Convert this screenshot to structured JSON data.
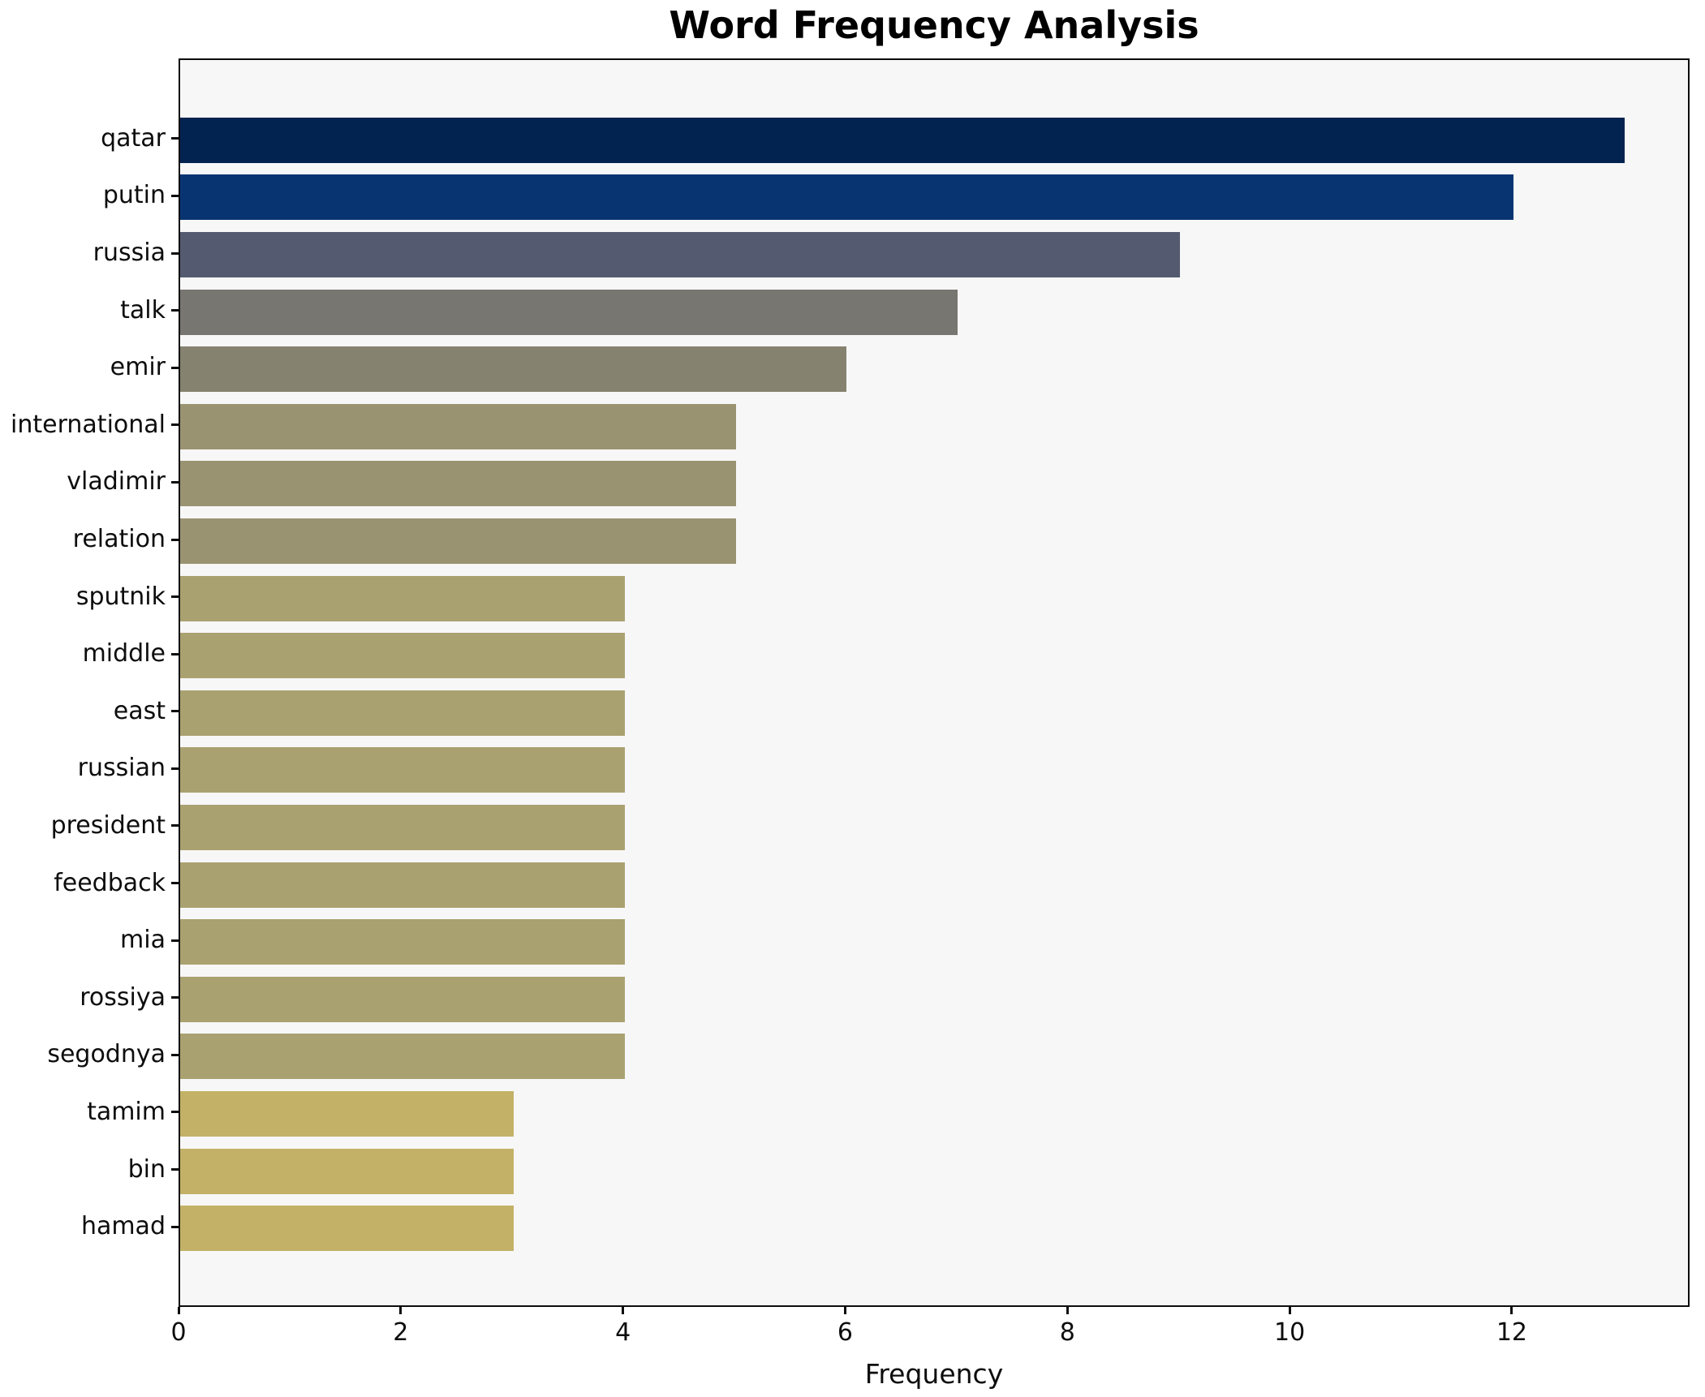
{
  "chart_data": {
    "type": "bar",
    "orientation": "horizontal",
    "title": "Word Frequency Analysis",
    "xlabel": "Frequency",
    "ylabel": "",
    "categories": [
      "qatar",
      "putin",
      "russia",
      "talk",
      "emir",
      "international",
      "vladimir",
      "relation",
      "sputnik",
      "middle",
      "east",
      "russian",
      "president",
      "feedback",
      "mia",
      "rossiya",
      "segodnya",
      "tamim",
      "bin",
      "hamad"
    ],
    "values": [
      13,
      12,
      9,
      7,
      6,
      5,
      5,
      5,
      4,
      4,
      4,
      4,
      4,
      4,
      4,
      4,
      4,
      3,
      3,
      3
    ],
    "bar_colors": [
      "#02234f",
      "#083572",
      "#545b70",
      "#777670",
      "#868270",
      "#999371",
      "#999371",
      "#999371",
      "#aaa171",
      "#aaa171",
      "#aaa171",
      "#aaa171",
      "#aaa171",
      "#aaa171",
      "#aaa171",
      "#aaa171",
      "#aaa171",
      "#c3b167",
      "#c3b167",
      "#c3b167"
    ],
    "xticks": [
      0,
      2,
      4,
      6,
      8,
      10,
      12
    ],
    "xlim": [
      0,
      13.6
    ],
    "grid": false,
    "legend": null,
    "plot_background": "#f7f7f7",
    "figure_background": "#ffffff",
    "spine_color": "#0d0d0d",
    "text_color": "#0d0d0d",
    "bar_fraction": 0.8
  }
}
